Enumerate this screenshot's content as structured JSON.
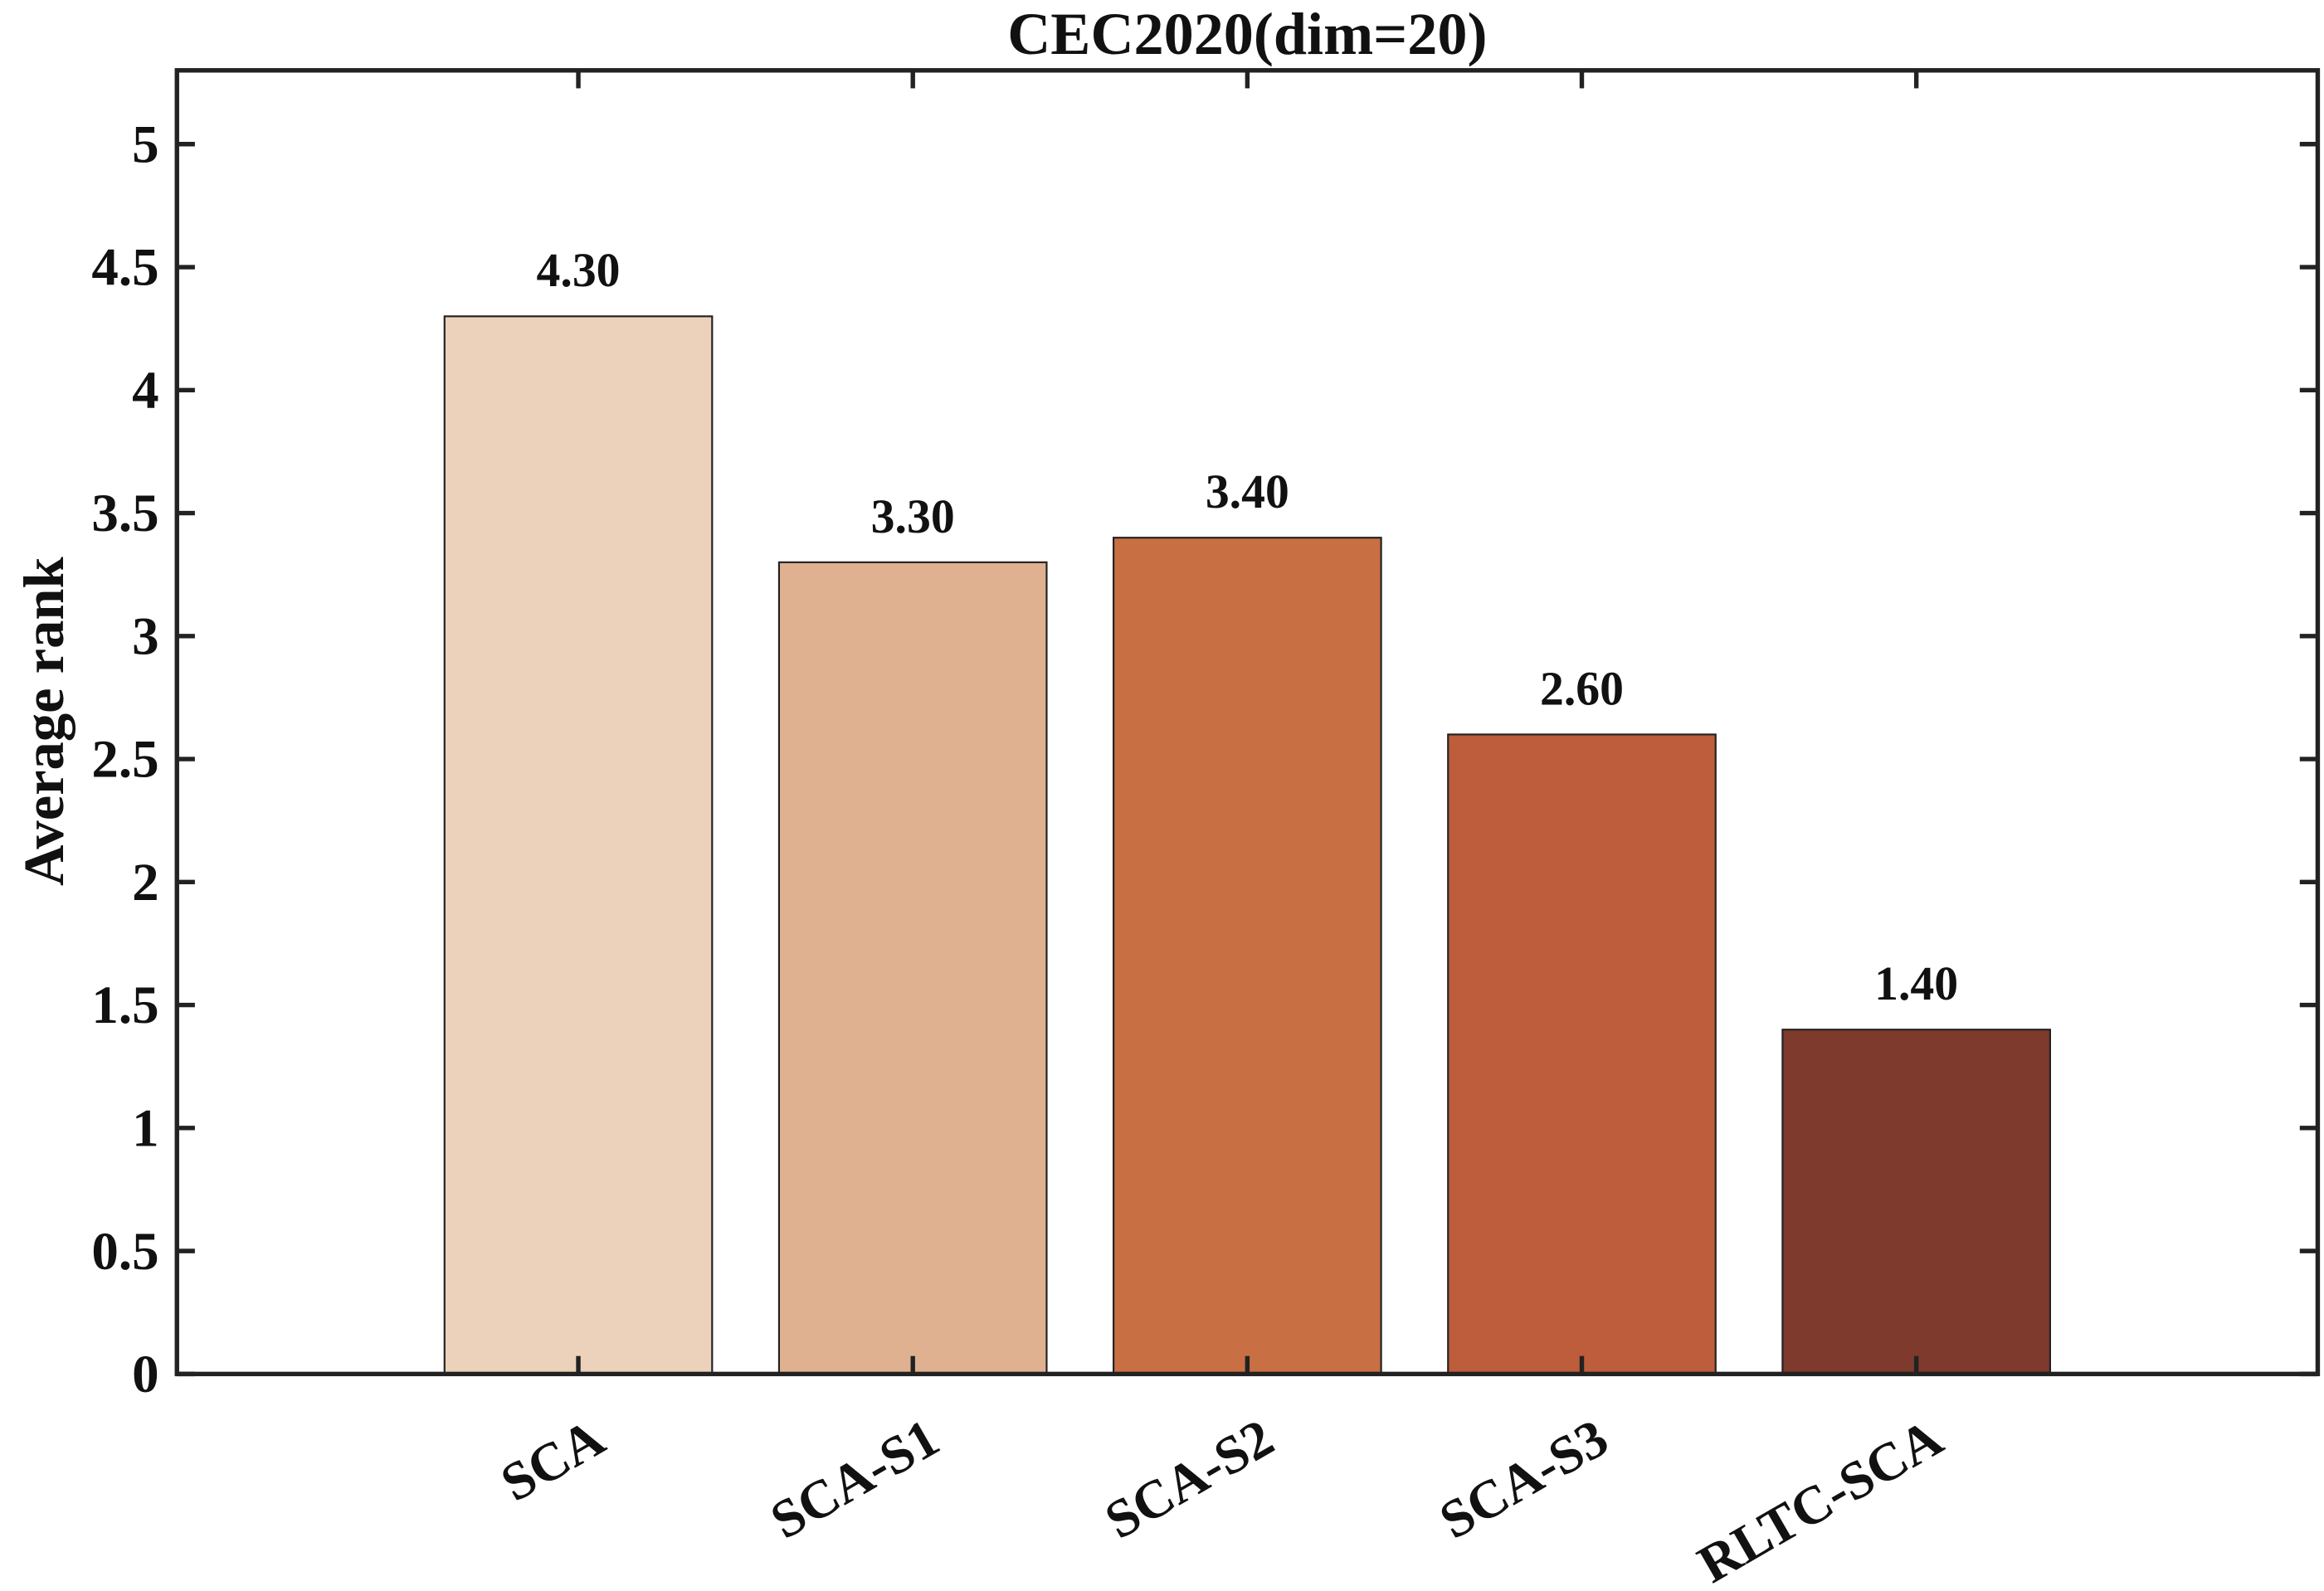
{
  "chart_data": {
    "type": "bar",
    "title": "CEC2020(dim=20)",
    "ylabel": "Average rank",
    "categories": [
      "SCA",
      "SCA-S1",
      "SCA-S2",
      "SCA-S3",
      "RLTC-SCA"
    ],
    "values": [
      4.3,
      3.3,
      3.4,
      2.6,
      1.4
    ],
    "value_labels": [
      "4.30",
      "3.30",
      "3.40",
      "2.60",
      "1.40"
    ],
    "colors": [
      "#ecd2bb",
      "#e0b190",
      "#c86f43",
      "#bd5d3b",
      "#7d3a2d"
    ],
    "ylim": [
      0,
      5.3
    ],
    "yticks": [
      0,
      0.5,
      1,
      1.5,
      2,
      2.5,
      3,
      3.5,
      4,
      4.5,
      5
    ]
  }
}
